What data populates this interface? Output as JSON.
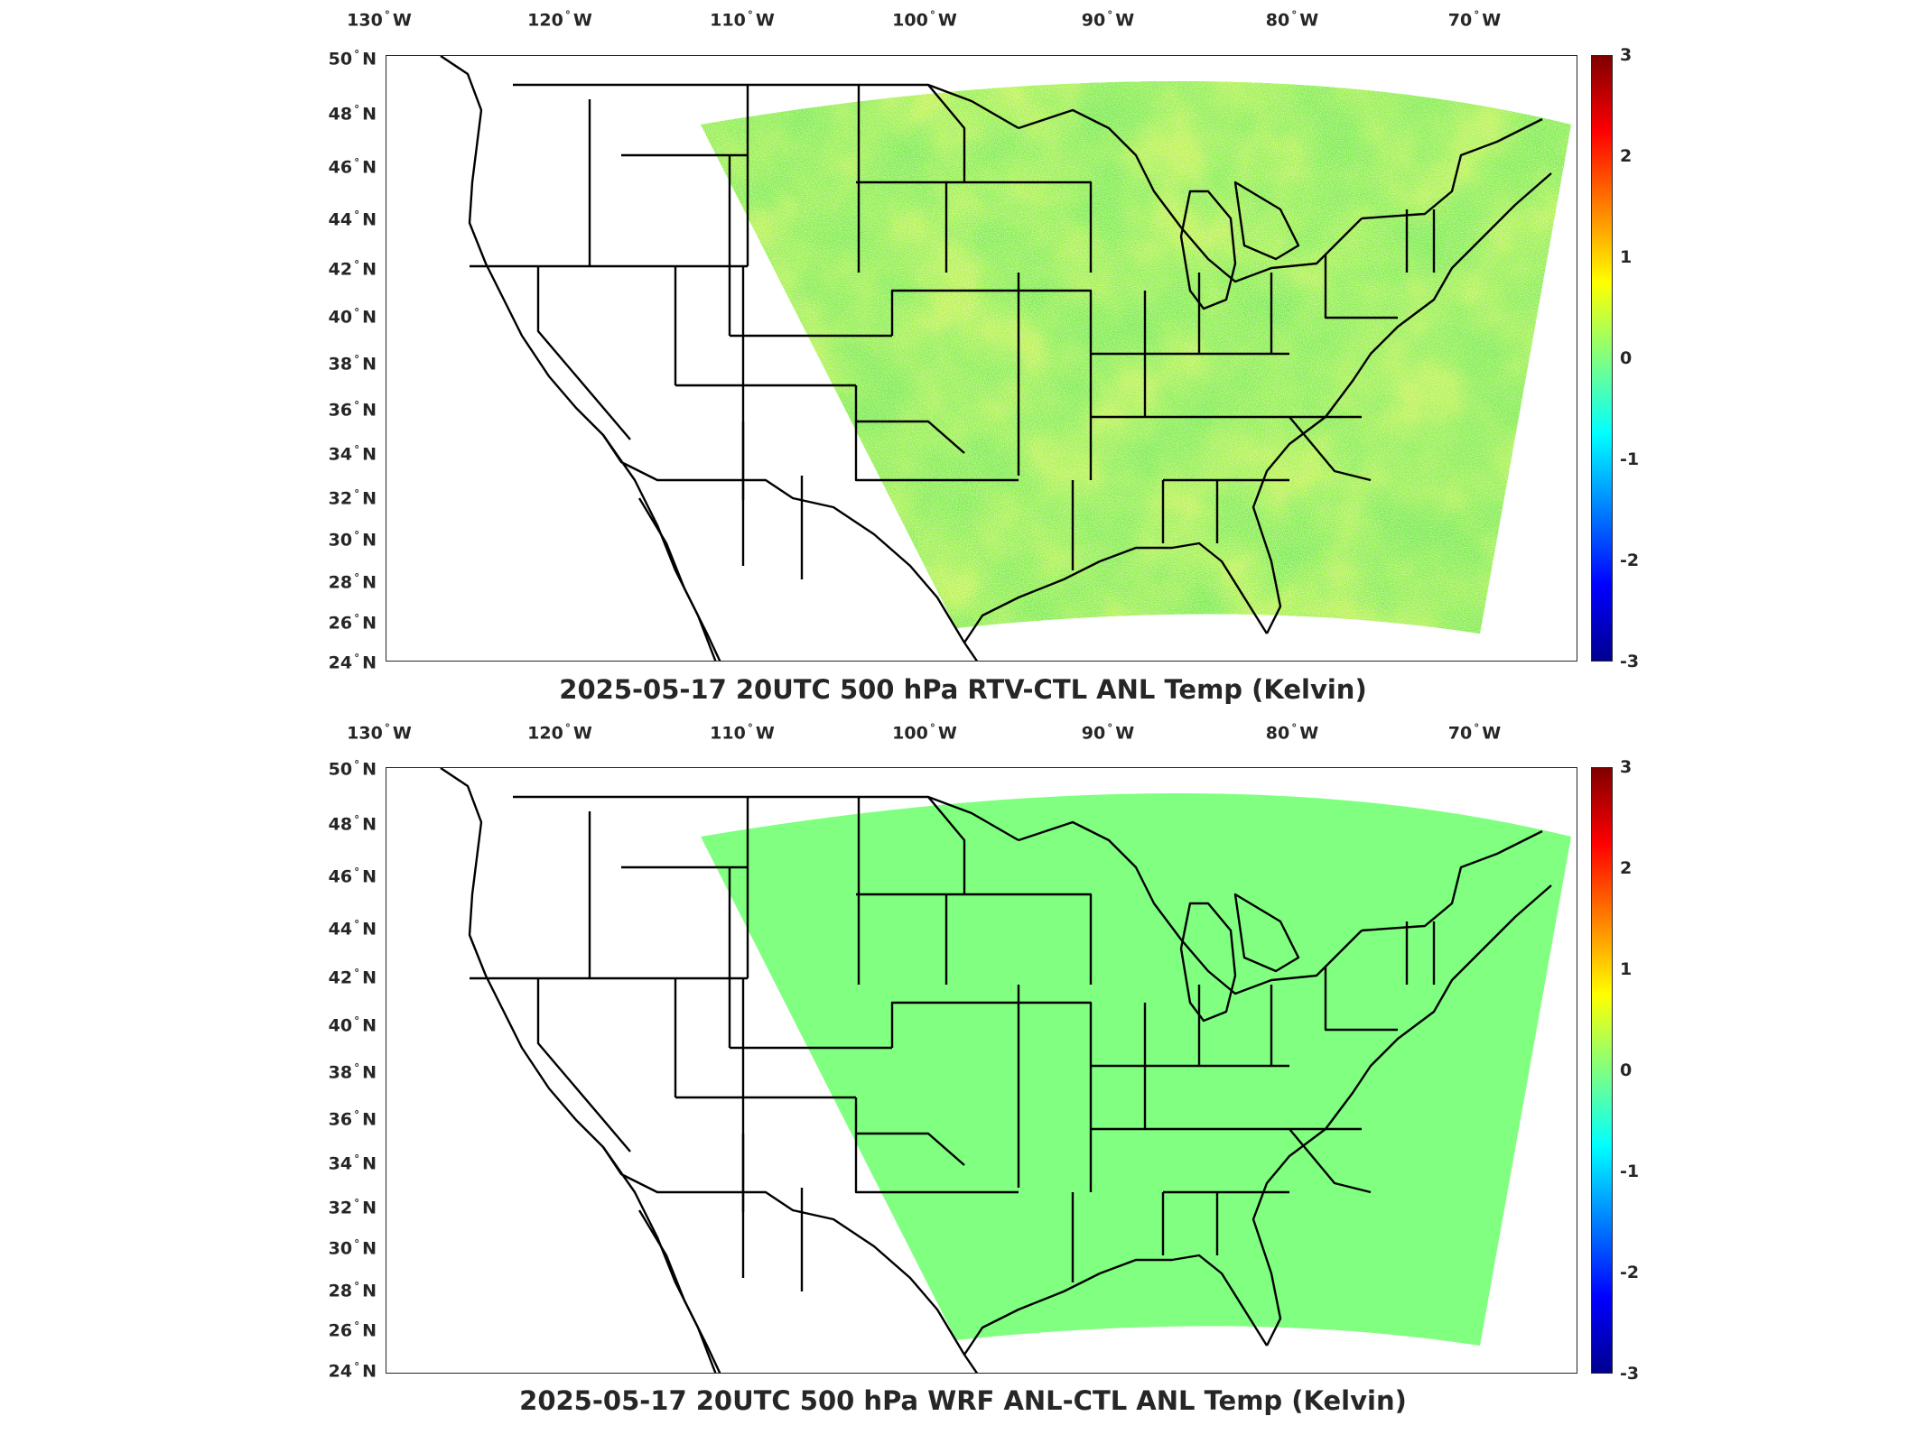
{
  "figure": {
    "panels": [
      {
        "title": "2025-05-17 20UTC 500 hPa RTV-CTL ANL Temp (Kelvin)",
        "field": "noisy"
      },
      {
        "title": "2025-05-17 20UTC 500 hPa WRF ANL-CTL ANL Temp (Kelvin)",
        "field": "uniform"
      }
    ],
    "longitude_ticks": [
      "130",
      "120",
      "110",
      "100",
      "90",
      "80",
      "70"
    ],
    "longitude_hemisphere": "W",
    "latitude_ticks": [
      "50",
      "48",
      "46",
      "44",
      "42",
      "40",
      "38",
      "36",
      "34",
      "32",
      "30",
      "28",
      "26",
      "24"
    ],
    "latitude_hemisphere": "N",
    "colorbar": {
      "ticks": [
        "3",
        "2",
        "1",
        "0",
        "-1",
        "-2",
        "-3"
      ],
      "range": [
        -3,
        3
      ],
      "colormap": "jet",
      "zero_color": "#80ff80"
    }
  }
}
